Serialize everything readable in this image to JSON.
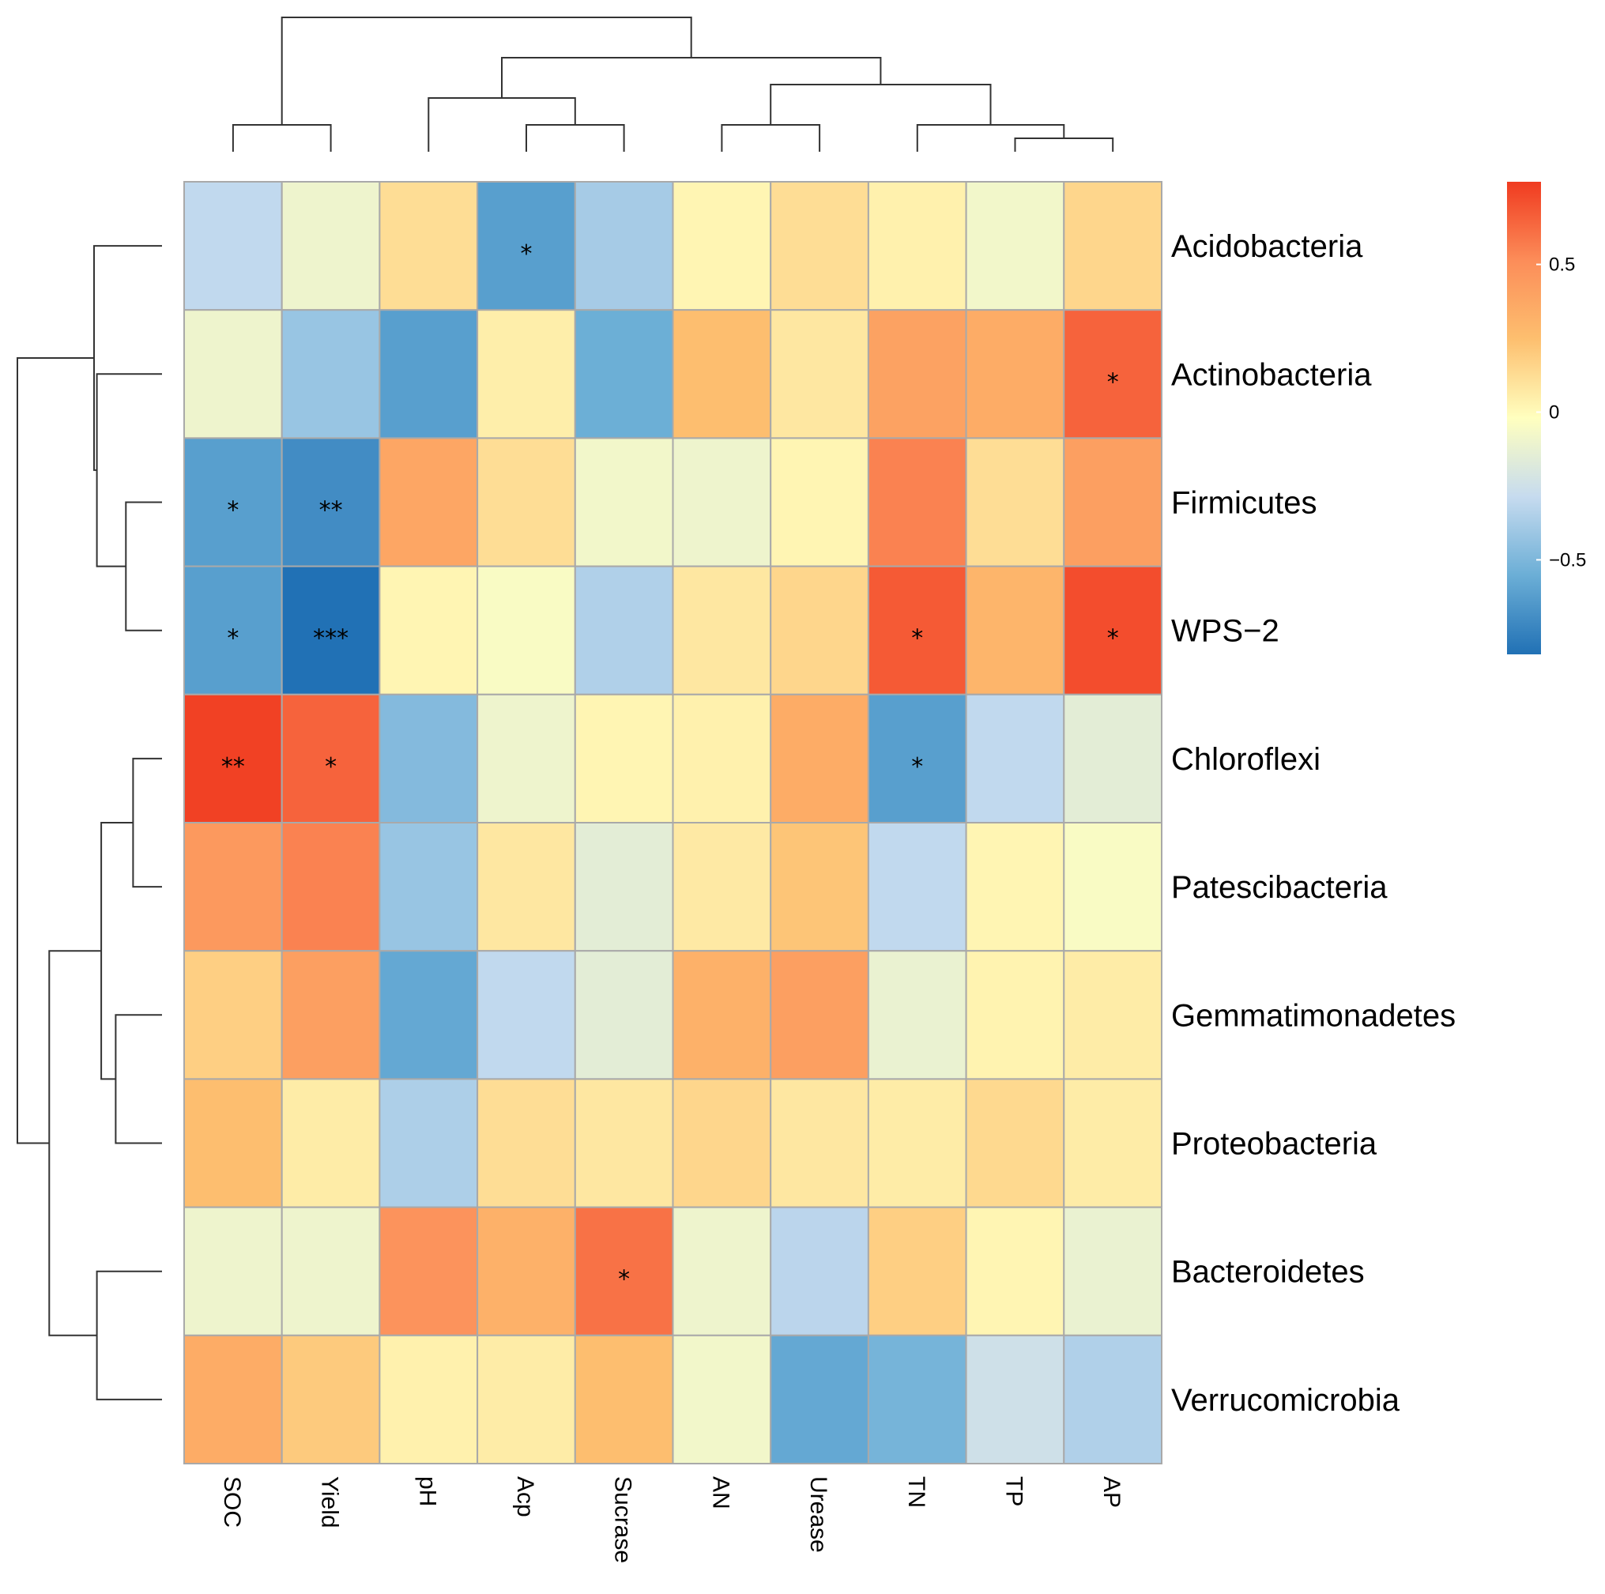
{
  "chart_data": {
    "type": "heatmap",
    "title": "",
    "xlabel": "",
    "ylabel": "",
    "rows": [
      "Acidobacteria",
      "Actinobacteria",
      "Firmicutes",
      "WPS−2",
      "Chloroflexi",
      "Patescibacteria",
      "Gemmatimonadetes",
      "Proteobacteria",
      "Bacteroidetes",
      "Verrucomicrobia"
    ],
    "columns": [
      "SOC",
      "Yield",
      "pH",
      "Acp",
      "Sucrase",
      "AN",
      "Urease",
      "TN",
      "TP",
      "AP"
    ],
    "values": [
      [
        -0.3,
        -0.1,
        0.12,
        -0.62,
        -0.38,
        0.02,
        0.12,
        0.04,
        -0.08,
        0.15
      ],
      [
        -0.1,
        -0.42,
        -0.62,
        0.05,
        -0.55,
        0.25,
        0.08,
        0.4,
        0.35,
        0.65
      ],
      [
        -0.62,
        -0.7,
        0.38,
        0.12,
        -0.08,
        -0.1,
        0.02,
        0.55,
        0.12,
        0.42
      ],
      [
        -0.62,
        -0.82,
        0.02,
        -0.05,
        -0.35,
        0.08,
        0.15,
        0.68,
        0.3,
        0.72
      ],
      [
        0.76,
        0.65,
        -0.48,
        -0.1,
        0.02,
        0.04,
        0.35,
        -0.62,
        -0.3,
        -0.15
      ],
      [
        0.45,
        0.55,
        -0.42,
        0.08,
        -0.15,
        0.07,
        0.22,
        -0.3,
        0.02,
        -0.05
      ],
      [
        0.18,
        0.42,
        -0.58,
        -0.3,
        -0.15,
        0.32,
        0.42,
        -0.12,
        0.03,
        0.06
      ],
      [
        0.25,
        0.06,
        -0.36,
        0.12,
        0.08,
        0.15,
        0.08,
        0.06,
        0.14,
        0.06
      ],
      [
        -0.1,
        -0.1,
        0.48,
        0.32,
        0.6,
        -0.1,
        -0.32,
        0.18,
        0.02,
        -0.12
      ],
      [
        0.35,
        0.2,
        0.04,
        0.06,
        0.25,
        -0.08,
        -0.58,
        -0.52,
        -0.25,
        -0.35
      ]
    ],
    "significance": [
      [
        "",
        "",
        "",
        "*",
        "",
        "",
        "",
        "",
        "",
        ""
      ],
      [
        "",
        "",
        "",
        "",
        "",
        "",
        "",
        "",
        "",
        "*"
      ],
      [
        "*",
        "**",
        "",
        "",
        "",
        "",
        "",
        "",
        "",
        ""
      ],
      [
        "*",
        "***",
        "",
        "",
        "",
        "",
        "",
        "*",
        "",
        "*"
      ],
      [
        "**",
        "*",
        "",
        "",
        "",
        "",
        "",
        "*",
        "",
        ""
      ],
      [
        "",
        "",
        "",
        "",
        "",
        "",
        "",
        "",
        "",
        ""
      ],
      [
        "",
        "",
        "",
        "",
        "",
        "",
        "",
        "",
        "",
        ""
      ],
      [
        "",
        "",
        "",
        "",
        "",
        "",
        "",
        "",
        "",
        ""
      ],
      [
        "",
        "",
        "",
        "",
        "*",
        "",
        "",
        "",
        "",
        ""
      ],
      [
        "",
        "",
        "",
        "",
        "",
        "",
        "",
        "",
        "",
        ""
      ]
    ],
    "colorbar": {
      "min": -0.82,
      "max": 0.78,
      "ticks": [
        0.5,
        0,
        -0.5
      ],
      "tick_labels": [
        "0.5",
        "0",
        "−0.5"
      ],
      "colors": [
        "#2171b5",
        "#6baed6",
        "#c6dbef",
        "#ffffbf",
        "#fdbf6f",
        "#fc8d59",
        "#f03b20"
      ],
      "position": "right"
    },
    "column_dendrogram": [
      [
        0,
        1
      ],
      [
        3,
        4
      ],
      [
        2,
        11
      ],
      [
        5,
        6
      ],
      [
        8,
        9
      ],
      [
        7,
        14
      ],
      [
        13,
        15
      ],
      [
        12,
        16
      ],
      [
        10,
        17
      ]
    ],
    "column_dendrogram_heights": [
      0.2,
      0.2,
      0.4,
      0.2,
      0.1,
      0.2,
      0.5,
      0.7,
      1.0
    ],
    "row_dendrogram": [
      [
        2,
        3
      ],
      [
        1,
        10
      ],
      [
        0,
        11
      ],
      [
        4,
        5
      ],
      [
        6,
        7
      ],
      [
        13,
        14
      ],
      [
        8,
        9
      ],
      [
        15,
        16
      ],
      [
        12,
        17
      ]
    ],
    "row_dendrogram_heights": [
      0.25,
      0.45,
      0.47,
      0.2,
      0.32,
      0.42,
      0.45,
      0.78,
      1.0
    ]
  }
}
